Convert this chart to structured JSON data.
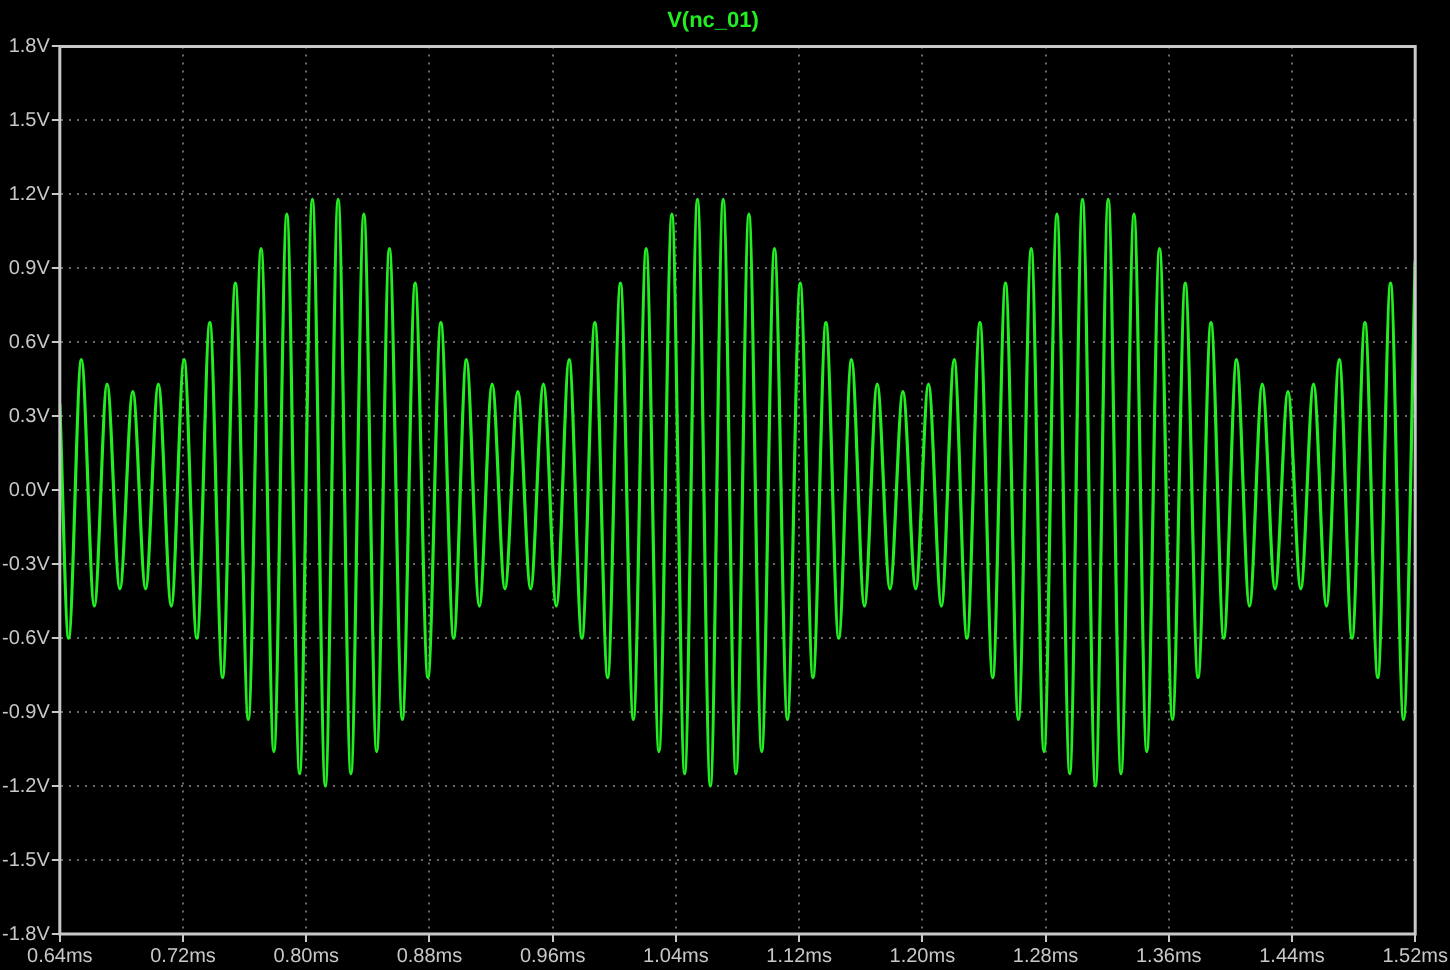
{
  "chart_data": {
    "type": "line",
    "title": "V(nc_01)",
    "x": [
      0.64,
      0.6457,
      0.654,
      0.6624,
      0.6707,
      0.679,
      0.6874,
      0.6957,
      0.704,
      0.7124,
      0.7207,
      0.729,
      0.7374,
      0.7457,
      0.754,
      0.7624,
      0.7707,
      0.779,
      0.7874,
      0.7957,
      0.804,
      0.8124,
      0.8207,
      0.829,
      0.8374,
      0.8457,
      0.854,
      0.8624,
      0.8707,
      0.879,
      0.8874,
      0.8957,
      0.904,
      0.9124,
      0.9207,
      0.929,
      0.9374,
      0.9457,
      0.954,
      0.9624,
      0.9707,
      0.979,
      0.9874,
      0.9957,
      1.004,
      1.0124,
      1.0207,
      1.029,
      1.0374,
      1.0457,
      1.054,
      1.0624,
      1.0707,
      1.079,
      1.0874,
      1.0957,
      1.104,
      1.1124,
      1.1207,
      1.129,
      1.1374,
      1.1457,
      1.154,
      1.1624,
      1.1707,
      1.179,
      1.1874,
      1.1957,
      1.204,
      1.2124,
      1.2207,
      1.229,
      1.2374,
      1.2457,
      1.254,
      1.2624,
      1.2707,
      1.279,
      1.2874,
      1.2957,
      1.304,
      1.3124,
      1.3207,
      1.329,
      1.3374,
      1.3457,
      1.354,
      1.3624,
      1.3707,
      1.379,
      1.3874,
      1.3957,
      1.404,
      1.4124,
      1.4207,
      1.429,
      1.4374,
      1.4457,
      1.454,
      1.4624,
      1.4707,
      1.479,
      1.4874,
      1.4957,
      1.504,
      1.5124,
      1.52
    ],
    "series": [
      {
        "color": "#22ee22",
        "values": [
          0.35,
          -0.6,
          0.53,
          -0.47,
          0.43,
          -0.4,
          0.4,
          -0.4,
          0.43,
          -0.47,
          0.53,
          -0.6,
          0.68,
          -0.76,
          0.84,
          -0.93,
          0.98,
          -1.06,
          1.12,
          -1.15,
          1.18,
          -1.2,
          1.18,
          -1.15,
          1.12,
          -1.06,
          0.98,
          -0.93,
          0.84,
          -0.76,
          0.68,
          -0.6,
          0.53,
          -0.47,
          0.43,
          -0.4,
          0.4,
          -0.4,
          0.43,
          -0.47,
          0.53,
          -0.6,
          0.68,
          -0.76,
          0.84,
          -0.93,
          0.98,
          -1.06,
          1.12,
          -1.15,
          1.18,
          -1.2,
          1.18,
          -1.15,
          1.12,
          -1.06,
          0.98,
          -0.93,
          0.84,
          -0.76,
          0.68,
          -0.6,
          0.53,
          -0.47,
          0.43,
          -0.4,
          0.4,
          -0.4,
          0.43,
          -0.47,
          0.53,
          -0.6,
          0.68,
          -0.76,
          0.84,
          -0.93,
          0.98,
          -1.06,
          1.12,
          -1.15,
          1.18,
          -1.2,
          1.18,
          -1.15,
          1.12,
          -1.06,
          0.98,
          -0.93,
          0.84,
          -0.76,
          0.68,
          -0.6,
          0.53,
          -0.47,
          0.43,
          -0.4,
          0.4,
          -0.4,
          0.43,
          -0.47,
          0.53,
          -0.6,
          0.68,
          -0.76,
          0.84,
          -0.93,
          0.93
        ]
      }
    ],
    "xlim": [
      0.64,
      1.52
    ],
    "xticks": [
      {
        "value": 0.64,
        "label": "0.64ms"
      },
      {
        "value": 0.72,
        "label": "0.72ms"
      },
      {
        "value": 0.8,
        "label": "0.80ms"
      },
      {
        "value": 0.88,
        "label": "0.88ms"
      },
      {
        "value": 0.96,
        "label": "0.96ms"
      },
      {
        "value": 1.04,
        "label": "1.04ms"
      },
      {
        "value": 1.12,
        "label": "1.12ms"
      },
      {
        "value": 1.2,
        "label": "1.20ms"
      },
      {
        "value": 1.28,
        "label": "1.28ms"
      },
      {
        "value": 1.36,
        "label": "1.36ms"
      },
      {
        "value": 1.44,
        "label": "1.44ms"
      },
      {
        "value": 1.52,
        "label": "1.52ms"
      }
    ],
    "ylim": [
      -1.8,
      1.8
    ],
    "yticks": [
      {
        "value": -1.8,
        "label": "-1.8V"
      },
      {
        "value": -1.5,
        "label": "-1.5V"
      },
      {
        "value": -1.2,
        "label": "-1.2V"
      },
      {
        "value": -0.9,
        "label": "-0.9V"
      },
      {
        "value": -0.6,
        "label": "-0.6V"
      },
      {
        "value": -0.3,
        "label": "-0.3V"
      },
      {
        "value": 0,
        "label": "0.0V"
      },
      {
        "value": 0.3,
        "label": "0.3V"
      },
      {
        "value": 0.6,
        "label": "0.6V"
      },
      {
        "value": 0.9,
        "label": "0.9V"
      },
      {
        "value": 1.2,
        "label": "1.2V"
      },
      {
        "value": 1.5,
        "label": "1.5V"
      },
      {
        "value": 1.8,
        "label": "1.8V"
      }
    ],
    "grid": true
  }
}
